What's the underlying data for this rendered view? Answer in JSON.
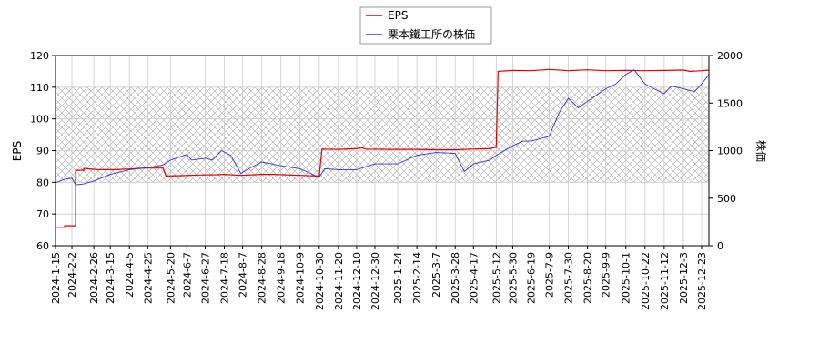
{
  "chart_data": {
    "type": "line",
    "title": "",
    "xlabel": "",
    "ylabel_left": "EPS",
    "ylabel_right": "株価",
    "ylim_left": [
      60,
      120
    ],
    "ylim_right": [
      0,
      2000
    ],
    "yticks_left": [
      "60",
      "70",
      "80",
      "90",
      "100",
      "110",
      "120"
    ],
    "yticks_right": [
      "0",
      "500",
      "1000",
      "1500",
      "2000"
    ],
    "x_range": [
      "2024-01-15",
      "2025-12-31"
    ],
    "x_ticks": [
      "2024-1-15",
      "2024-2-2",
      "2024-2-26",
      "2024-3-15",
      "2024-4-5",
      "2024-4-25",
      "2024-5-20",
      "2024-6-7",
      "2024-6-27",
      "2024-7-18",
      "2024-8-7",
      "2024-8-28",
      "2024-9-18",
      "2024-10-9",
      "2024-10-30",
      "2024-11-20",
      "2024-12-10",
      "2024-12-30",
      "2025-1-24",
      "2025-2-14",
      "2025-3-7",
      "2025-3-28",
      "2025-4-17",
      "2025-5-12",
      "2025-5-30",
      "2025-6-19",
      "2025-7-9",
      "2025-7-30",
      "2025-8-20",
      "2025-9-9",
      "2025-10-1",
      "2025-10-22",
      "2025-11-12",
      "2025-12-3",
      "2025-12-23"
    ],
    "grid": true,
    "legend_position": "top-center",
    "shaded_band": {
      "axis": "left",
      "from": 80,
      "to": 110
    },
    "series": [
      {
        "name": "EPS",
        "axis": "left",
        "color": "#dd0000",
        "points": [
          [
            "2024-01-15",
            65.8
          ],
          [
            "2024-01-25",
            65.8
          ],
          [
            "2024-01-25",
            66.3
          ],
          [
            "2024-02-06",
            66.3
          ],
          [
            "2024-02-06",
            83.8
          ],
          [
            "2024-02-15",
            83.8
          ],
          [
            "2024-02-15",
            84.4
          ],
          [
            "2024-03-01",
            84.0
          ],
          [
            "2024-03-20",
            84.0
          ],
          [
            "2024-04-05",
            84.2
          ],
          [
            "2024-04-20",
            84.5
          ],
          [
            "2024-05-12",
            84.5
          ],
          [
            "2024-05-15",
            82.0
          ],
          [
            "2024-06-01",
            82.1
          ],
          [
            "2024-06-20",
            82.3
          ],
          [
            "2024-07-10",
            82.4
          ],
          [
            "2024-07-18",
            82.5
          ],
          [
            "2024-08-05",
            82.2
          ],
          [
            "2024-08-28",
            82.5
          ],
          [
            "2024-09-10",
            82.5
          ],
          [
            "2024-10-09",
            82.2
          ],
          [
            "2024-10-28",
            82.0
          ],
          [
            "2024-10-30",
            82.0
          ],
          [
            "2024-11-02",
            90.5
          ],
          [
            "2024-11-20",
            90.4
          ],
          [
            "2024-12-10",
            90.6
          ],
          [
            "2024-12-15",
            91.0
          ],
          [
            "2024-12-20",
            90.5
          ],
          [
            "2025-01-15",
            90.4
          ],
          [
            "2025-02-14",
            90.4
          ],
          [
            "2025-03-07",
            90.3
          ],
          [
            "2025-03-28",
            90.3
          ],
          [
            "2025-04-17",
            90.5
          ],
          [
            "2025-05-05",
            90.6
          ],
          [
            "2025-05-10",
            91.0
          ],
          [
            "2025-05-12",
            91.0
          ],
          [
            "2025-05-14",
            115.0
          ],
          [
            "2025-05-30",
            115.3
          ],
          [
            "2025-06-19",
            115.2
          ],
          [
            "2025-07-09",
            115.6
          ],
          [
            "2025-07-30",
            115.2
          ],
          [
            "2025-08-20",
            115.5
          ],
          [
            "2025-09-09",
            115.2
          ],
          [
            "2025-10-01",
            115.3
          ],
          [
            "2025-10-22",
            115.2
          ],
          [
            "2025-11-12",
            115.3
          ],
          [
            "2025-12-03",
            115.4
          ],
          [
            "2025-12-10",
            115.0
          ],
          [
            "2025-12-23",
            115.2
          ],
          [
            "2025-12-31",
            115.4
          ]
        ]
      },
      {
        "name": "栗本鐵工所の株価",
        "axis": "right",
        "color": "#3333cc",
        "points": [
          [
            "2024-01-15",
            660
          ],
          [
            "2024-01-25",
            700
          ],
          [
            "2024-02-02",
            710
          ],
          [
            "2024-02-06",
            640
          ],
          [
            "2024-02-15",
            650
          ],
          [
            "2024-02-26",
            680
          ],
          [
            "2024-03-15",
            750
          ],
          [
            "2024-04-05",
            800
          ],
          [
            "2024-04-25",
            820
          ],
          [
            "2024-05-12",
            850
          ],
          [
            "2024-05-20",
            900
          ],
          [
            "2024-06-07",
            960
          ],
          [
            "2024-06-12",
            900
          ],
          [
            "2024-06-27",
            920
          ],
          [
            "2024-07-05",
            900
          ],
          [
            "2024-07-15",
            1000
          ],
          [
            "2024-07-25",
            950
          ],
          [
            "2024-08-05",
            760
          ],
          [
            "2024-08-12",
            800
          ],
          [
            "2024-08-28",
            880
          ],
          [
            "2024-09-18",
            840
          ],
          [
            "2024-10-09",
            810
          ],
          [
            "2024-10-25",
            740
          ],
          [
            "2024-10-30",
            720
          ],
          [
            "2024-11-05",
            810
          ],
          [
            "2024-11-20",
            800
          ],
          [
            "2024-12-10",
            800
          ],
          [
            "2024-12-30",
            860
          ],
          [
            "2025-01-24",
            860
          ],
          [
            "2025-02-14",
            950
          ],
          [
            "2025-03-07",
            980
          ],
          [
            "2025-03-28",
            970
          ],
          [
            "2025-04-07",
            780
          ],
          [
            "2025-04-17",
            860
          ],
          [
            "2025-05-05",
            900
          ],
          [
            "2025-05-12",
            950
          ],
          [
            "2025-05-30",
            1050
          ],
          [
            "2025-06-10",
            1100
          ],
          [
            "2025-06-19",
            1100
          ],
          [
            "2025-07-09",
            1150
          ],
          [
            "2025-07-20",
            1400
          ],
          [
            "2025-07-30",
            1550
          ],
          [
            "2025-08-10",
            1450
          ],
          [
            "2025-08-20",
            1520
          ],
          [
            "2025-09-09",
            1650
          ],
          [
            "2025-09-20",
            1700
          ],
          [
            "2025-10-01",
            1800
          ],
          [
            "2025-10-10",
            1850
          ],
          [
            "2025-10-22",
            1700
          ],
          [
            "2025-11-01",
            1650
          ],
          [
            "2025-11-12",
            1600
          ],
          [
            "2025-11-20",
            1680
          ],
          [
            "2025-12-03",
            1650
          ],
          [
            "2025-12-15",
            1620
          ],
          [
            "2025-12-23",
            1700
          ],
          [
            "2025-12-31",
            1800
          ]
        ]
      }
    ]
  }
}
